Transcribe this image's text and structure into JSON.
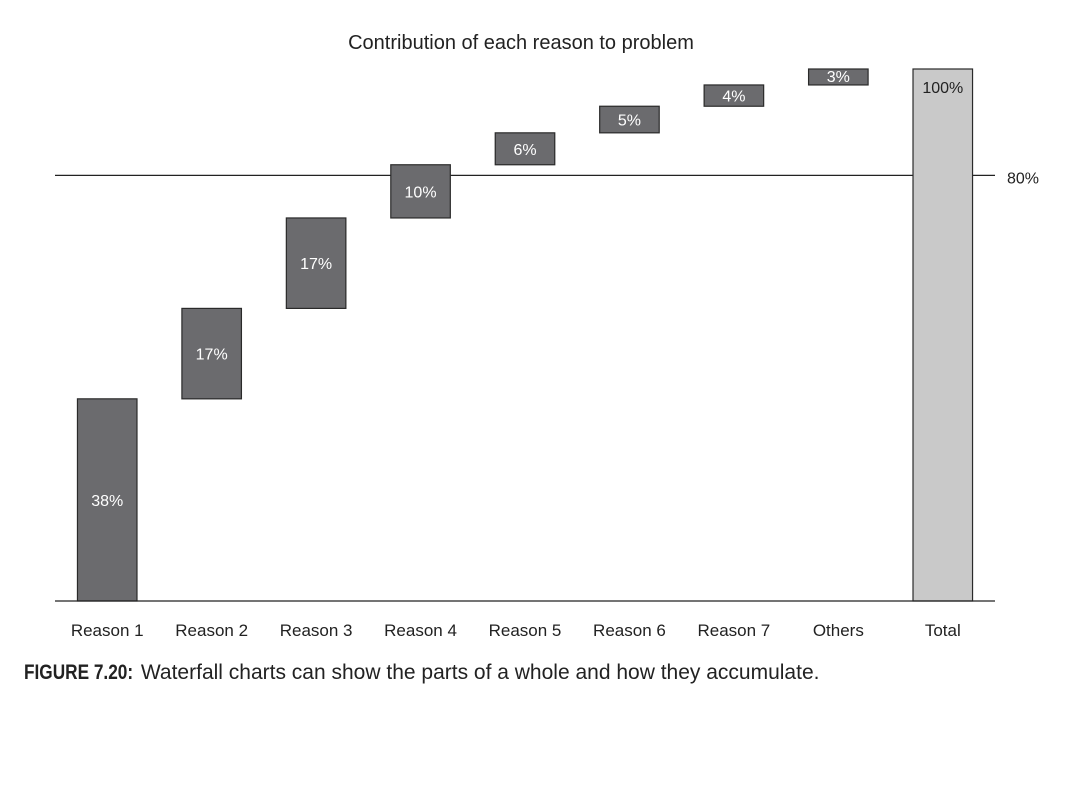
{
  "chart_data": {
    "type": "bar",
    "subtype": "waterfall",
    "title": "Contribution of each reason to problem",
    "categories": [
      "Reason 1",
      "Reason 2",
      "Reason 3",
      "Reason 4",
      "Reason 5",
      "Reason 6",
      "Reason 7",
      "Others",
      "Total"
    ],
    "values": [
      38,
      17,
      17,
      10,
      6,
      5,
      4,
      3,
      100
    ],
    "labels": [
      "38%",
      "17%",
      "17%",
      "10%",
      "6%",
      "5%",
      "4%",
      "3%",
      "100%"
    ],
    "is_total": [
      false,
      false,
      false,
      false,
      false,
      false,
      false,
      false,
      true
    ],
    "ylim": [
      0,
      100
    ],
    "reference_line": {
      "value": 80,
      "label": "80%"
    },
    "grid": false,
    "legend": "none",
    "colors": {
      "step_bar": "#6b6b6e",
      "total_bar": "#c9c9c9",
      "bar_stroke": "#2a2a2a",
      "step_label": "#ffffff",
      "total_label": "#222222",
      "axis": "#222222"
    }
  },
  "caption": {
    "label": "FIGURE 7.20:",
    "text": " Waterfall charts can show the parts of a whole and how they accumulate."
  }
}
